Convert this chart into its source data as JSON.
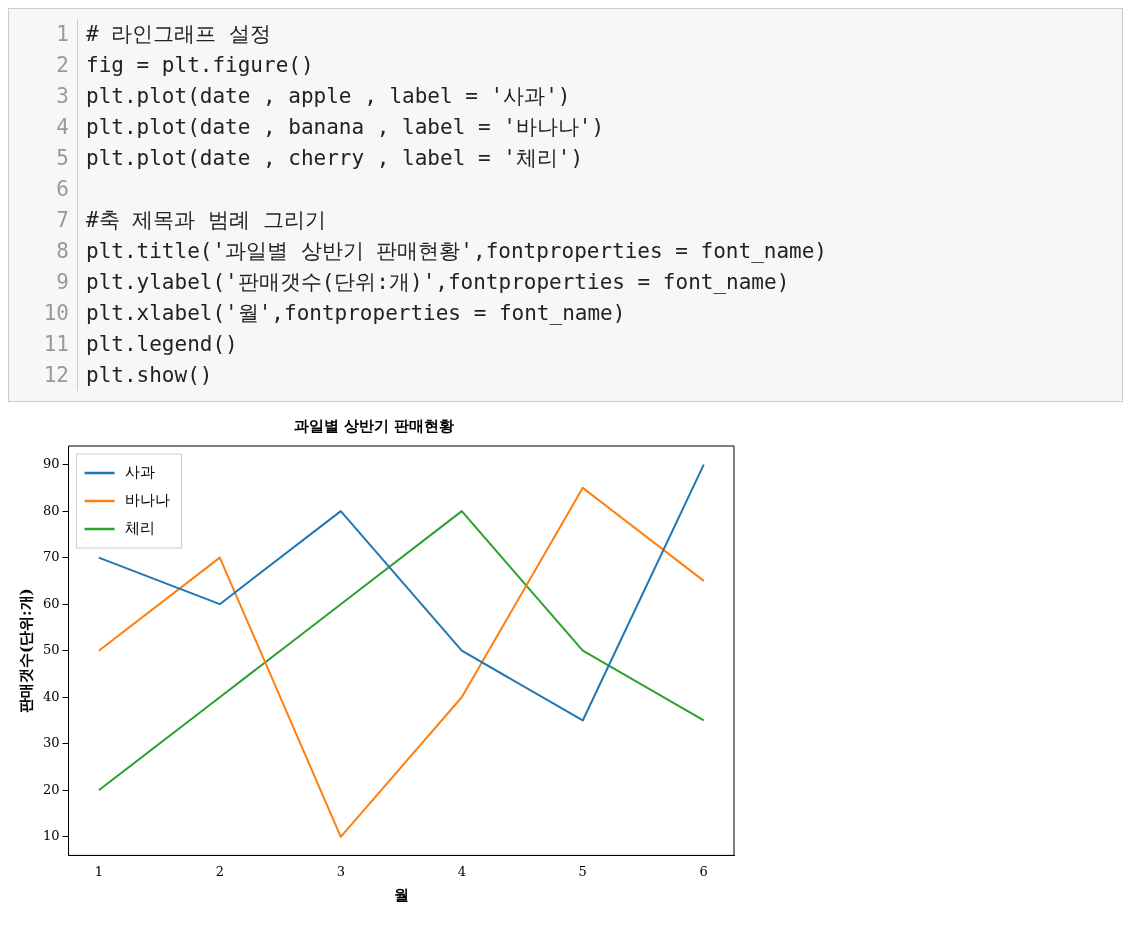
{
  "chart_data": {
    "type": "line",
    "title": "과일별 상반기 판매현황",
    "xlabel": "월",
    "ylabel": "판매갯수(단위:개)",
    "x": [
      1,
      2,
      3,
      4,
      5,
      6
    ],
    "series": [
      {
        "name": "사과",
        "color": "#1f77b4",
        "values": [
          70,
          60,
          80,
          50,
          35,
          90
        ]
      },
      {
        "name": "바나나",
        "color": "#ff7f0e",
        "values": [
          50,
          70,
          10,
          40,
          85,
          65
        ]
      },
      {
        "name": "체리",
        "color": "#2ca02c",
        "values": [
          20,
          40,
          60,
          80,
          50,
          35
        ]
      }
    ],
    "xlim": [
      0.75,
      6.25
    ],
    "xticks": [
      1,
      2,
      3,
      4,
      5,
      6
    ],
    "ylim": [
      6,
      94
    ],
    "yticks": [
      10,
      20,
      30,
      40,
      50,
      60,
      70,
      80,
      90
    ],
    "grid": false,
    "legend": "top left",
    "marker": "none",
    "line_style": "solid",
    "annotations": [
      "1 # 라인그래프 설정",
      "2 fig = plt.figure()",
      "3 plt.plot(date , apple , label = '사과')",
      "4 plt.plot(date , banana , label = '바나나')",
      "5 plt.plot(date , cherry , label = '체리')",
      "6",
      "7 #축 제목과 범례 그리기",
      "8 plt.title('과일별 상반기 판매현황',fontproperties = font_name)",
      "9 plt.ylabel('판매갯수(단위:개)',fontproperties = font_name)",
      "10 plt.xlabel('월',fontproperties = font_name)",
      "11 plt.legend()",
      "12 plt.show()"
    ]
  }
}
